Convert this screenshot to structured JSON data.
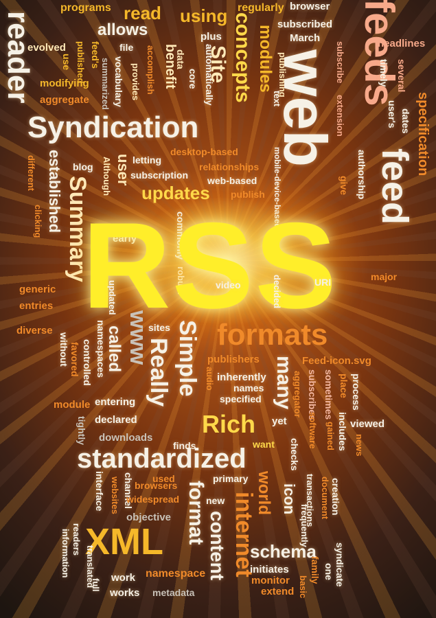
{
  "colors": {
    "glow": "#ffee2a",
    "background": "#3a2016",
    "accent": "#f08a2a"
  },
  "words": {
    "w_programs": "programs",
    "w_read": "read",
    "w_using": "using",
    "w_regularly": "regularly",
    "w_browser": "browser",
    "w_feeds": "feeds",
    "w_reader": "reader",
    "w_allows": "allows",
    "w_subscribed": "subscribed",
    "w_march": "March",
    "w_headlines": "headlines",
    "w_evolved": "evolved",
    "w_plus": "plus",
    "w_file": "file",
    "w_published": "published",
    "w_feeds_poss": "feed's",
    "w_modifying": "modifying",
    "w_aggregate": "aggregate",
    "w_use": "use",
    "w_summarized": "summarized",
    "w_vocabulary": "vocabulary",
    "w_provides": "provides",
    "w_accomplish": "accomplish",
    "w_benefit": "benefit",
    "w_data": "data",
    "w_core": "core",
    "w_automatically": "automatically",
    "w_site": "Site",
    "w_concepts": "concepts",
    "w_modules": "modules",
    "w_publishing": "publishing",
    "w_web": "web",
    "w_subscribe": "subscribe",
    "w_extension": "extension",
    "w_timely": "timely",
    "w_several": "several",
    "w_users": "user's",
    "w_dates": "dates",
    "w_specification": "specification",
    "w_text": "text",
    "w_syndication": "Syndication",
    "w_desktop_based": "desktop-based",
    "w_relationships": "relationships",
    "w_letting": "letting",
    "w_subscription": "subscription",
    "w_web_based": "web-based",
    "w_publish": "publish",
    "w_mobile": "mobile-device-based",
    "w_give": "give",
    "w_authorship": "authorship",
    "w_feed": "feed",
    "w_blog": "blog",
    "w_different": "different",
    "w_clicking": "clicking",
    "w_established": "established",
    "w_summary": "Summary",
    "w_although": "Although",
    "w_user": "user",
    "w_updates": "updates",
    "w_early": "early",
    "w_commonly": "commonly",
    "w_robust": "robust",
    "w_rss": "RSS",
    "w_major": "major",
    "w_generic": "generic",
    "w_entries": "entries",
    "w_updated": "updated",
    "w_video": "video",
    "w_decided": "decided",
    "w_uri": "URI",
    "w_diverse": "diverse",
    "w_www": "www",
    "w_sites": "sites",
    "w_formats": "formats",
    "w_without": "without",
    "w_favored": "favored",
    "w_controlled": "controlled",
    "w_called": "called",
    "w_namespaces": "namespaces",
    "w_really": "Really",
    "w_simple": "Simple",
    "w_publishers": "publishers",
    "w_feed_icon": "Feed-icon.svg",
    "w_inherently": "inherently",
    "w_names": "names",
    "w_audio": "audio",
    "w_many": "many",
    "w_aggregator": "aggregator",
    "w_subscribes": "subscribes",
    "w_sometimes": "sometimes",
    "w_process": "process",
    "w_module": "module",
    "w_entering": "entering",
    "w_specified": "specified",
    "w_place": "place",
    "w_software": "software",
    "w_gained": "gained",
    "w_includes": "includes",
    "w_tightly": "tightly",
    "w_declared": "declared",
    "w_rich": "Rich",
    "w_yet": "yet",
    "w_viewed": "viewed",
    "w_news": "news",
    "w_downloads": "downloads",
    "w_finds": "finds",
    "w_want": "want",
    "w_standardized": "standardized",
    "w_checks": "checks",
    "w_used": "used",
    "w_primary": "primary",
    "w_world": "world",
    "w_interface": "interface",
    "w_websites": "websites",
    "w_channel": "channel",
    "w_browsers": "browsers",
    "w_widespread": "widespread",
    "w_format": "format",
    "w_icon": "icon",
    "w_transactions": "transactions",
    "w_document": "document",
    "w_creation": "creation",
    "w_objective": "objective",
    "w_new": "new",
    "w_internet": "internet",
    "w_frequently": "frequently",
    "w_readers": "readers",
    "w_xml": "XML",
    "w_content": "content",
    "w_schema": "schema",
    "w_syndicate": "syndicate",
    "w_information": "information",
    "w_translated": "translated",
    "w_work": "work",
    "w_namespace": "namespace",
    "w_initiates": "initiates",
    "w_family": "family",
    "w_one": "one",
    "w_full": "full",
    "w_works": "works",
    "w_metadata": "metadata",
    "w_monitor": "monitor",
    "w_extend": "extend",
    "w_basic": "basic"
  }
}
